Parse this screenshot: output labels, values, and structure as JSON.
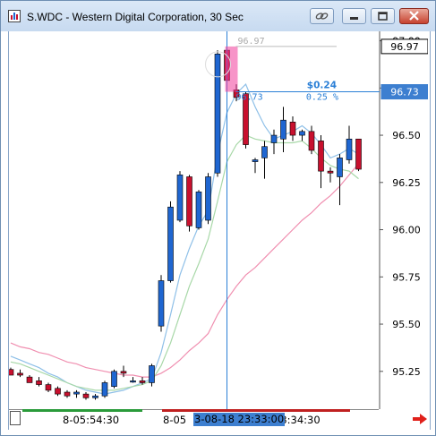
{
  "window": {
    "title": "S.WDC - Western Digital Corporation, 30 Sec",
    "buttons": [
      "link",
      "minimize",
      "restore",
      "close"
    ]
  },
  "colors": {
    "up_candle": "#1f66d1",
    "down_candle": "#c8102e",
    "ma_fast": "#8fc0e8",
    "ma_mid": "#a8d8a8",
    "ma_slow": "#f08fb0",
    "crosshair": "#2a7fd6",
    "axis_label_bg": "#3d7fd0",
    "highlight_box": "#f03c9a"
  },
  "price_axis": {
    "labels": [
      "97.00",
      "96.75",
      "96.50",
      "96.25",
      "96.00",
      "95.75",
      "95.50",
      "95.25"
    ],
    "current_price_tag": "96.97",
    "crosshair_price_tag": "96.73"
  },
  "time_axis": {
    "labels": [
      "8-05:54:30",
      "8-05",
      "23:34:30"
    ],
    "crosshair_time": "3-08-18 23:33:00"
  },
  "annotations": {
    "measure_price_top": "96.97",
    "measure_price_bottom": "96.73",
    "measure_change": "$0.24",
    "measure_percent": "0.25 %"
  },
  "chart_data": {
    "type": "candlestick",
    "ylim": [
      95.05,
      97.05
    ],
    "candles": [
      {
        "o": 95.26,
        "h": 95.27,
        "l": 95.23,
        "c": 95.23
      },
      {
        "o": 95.24,
        "h": 95.26,
        "l": 95.22,
        "c": 95.23
      },
      {
        "o": 95.22,
        "h": 95.23,
        "l": 95.19,
        "c": 95.19
      },
      {
        "o": 95.2,
        "h": 95.22,
        "l": 95.17,
        "c": 95.18
      },
      {
        "o": 95.18,
        "h": 95.19,
        "l": 95.14,
        "c": 95.15
      },
      {
        "o": 95.16,
        "h": 95.17,
        "l": 95.12,
        "c": 95.13
      },
      {
        "o": 95.14,
        "h": 95.15,
        "l": 95.11,
        "c": 95.12
      },
      {
        "o": 95.13,
        "h": 95.15,
        "l": 95.11,
        "c": 95.14
      },
      {
        "o": 95.13,
        "h": 95.14,
        "l": 95.1,
        "c": 95.11
      },
      {
        "o": 95.11,
        "h": 95.13,
        "l": 95.1,
        "c": 95.12
      },
      {
        "o": 95.12,
        "h": 95.2,
        "l": 95.11,
        "c": 95.19
      },
      {
        "o": 95.17,
        "h": 95.26,
        "l": 95.16,
        "c": 95.25
      },
      {
        "o": 95.25,
        "h": 95.28,
        "l": 95.22,
        "c": 95.24
      },
      {
        "o": 95.2,
        "h": 95.22,
        "l": 95.19,
        "c": 95.2
      },
      {
        "o": 95.2,
        "h": 95.22,
        "l": 95.18,
        "c": 95.19
      },
      {
        "o": 95.19,
        "h": 95.29,
        "l": 95.17,
        "c": 95.28
      },
      {
        "o": 95.49,
        "h": 95.76,
        "l": 95.46,
        "c": 95.73
      },
      {
        "o": 95.73,
        "h": 96.15,
        "l": 95.72,
        "c": 96.12
      },
      {
        "o": 96.05,
        "h": 96.31,
        "l": 96.04,
        "c": 96.29
      },
      {
        "o": 96.28,
        "h": 96.29,
        "l": 95.99,
        "c": 96.02
      },
      {
        "o": 96.01,
        "h": 96.21,
        "l": 96.0,
        "c": 96.2
      },
      {
        "o": 96.05,
        "h": 96.3,
        "l": 96.03,
        "c": 96.28
      },
      {
        "o": 96.3,
        "h": 96.95,
        "l": 96.28,
        "c": 96.93
      },
      {
        "o": 96.95,
        "h": 97.12,
        "l": 96.74,
        "c": 96.79
      },
      {
        "o": 96.74,
        "h": 96.77,
        "l": 96.68,
        "c": 96.7
      },
      {
        "o": 96.72,
        "h": 96.73,
        "l": 96.43,
        "c": 96.45
      },
      {
        "o": 96.36,
        "h": 96.38,
        "l": 96.3,
        "c": 96.37
      },
      {
        "o": 96.38,
        "h": 96.47,
        "l": 96.27,
        "c": 96.44
      },
      {
        "o": 96.46,
        "h": 96.53,
        "l": 96.4,
        "c": 96.5
      },
      {
        "o": 96.48,
        "h": 96.65,
        "l": 96.41,
        "c": 96.58
      },
      {
        "o": 96.57,
        "h": 96.6,
        "l": 96.47,
        "c": 96.5
      },
      {
        "o": 96.5,
        "h": 96.53,
        "l": 96.47,
        "c": 96.52
      },
      {
        "o": 96.52,
        "h": 96.55,
        "l": 96.4,
        "c": 96.42
      },
      {
        "o": 96.47,
        "h": 96.5,
        "l": 96.22,
        "c": 96.31
      },
      {
        "o": 96.31,
        "h": 96.33,
        "l": 96.25,
        "c": 96.3
      },
      {
        "o": 96.28,
        "h": 96.4,
        "l": 96.13,
        "c": 96.38
      },
      {
        "o": 96.37,
        "h": 96.55,
        "l": 96.35,
        "c": 96.48
      },
      {
        "o": 96.48,
        "h": 96.48,
        "l": 96.31,
        "c": 96.32
      }
    ],
    "ma_fast": [
      95.33,
      95.31,
      95.29,
      95.27,
      95.24,
      95.22,
      95.19,
      95.17,
      95.15,
      95.14,
      95.13,
      95.14,
      95.15,
      95.17,
      95.19,
      95.21,
      95.35,
      95.55,
      95.76,
      95.9,
      96.02,
      96.1,
      96.4,
      96.62,
      96.72,
      96.77,
      96.65,
      96.55,
      96.48,
      96.5,
      96.52,
      96.55,
      96.51,
      96.45,
      96.38,
      96.4,
      96.43,
      96.4
    ],
    "ma_mid": [
      95.3,
      95.29,
      95.27,
      95.25,
      95.23,
      95.21,
      95.19,
      95.17,
      95.16,
      95.15,
      95.15,
      95.15,
      95.16,
      95.17,
      95.18,
      95.2,
      95.28,
      95.4,
      95.55,
      95.7,
      95.82,
      95.95,
      96.15,
      96.36,
      96.45,
      96.5,
      96.48,
      96.47,
      96.46,
      96.46,
      96.46,
      96.47,
      96.43,
      96.38,
      96.34,
      96.32,
      96.31,
      96.27
    ],
    "ma_slow": [
      95.4,
      95.38,
      95.37,
      95.35,
      95.34,
      95.32,
      95.3,
      95.29,
      95.27,
      95.26,
      95.25,
      95.24,
      95.23,
      95.23,
      95.22,
      95.22,
      95.24,
      95.27,
      95.31,
      95.36,
      95.4,
      95.45,
      95.55,
      95.63,
      95.7,
      95.76,
      95.8,
      95.85,
      95.9,
      95.95,
      96.0,
      96.05,
      96.09,
      96.14,
      96.18,
      96.23,
      96.29,
      96.35
    ]
  }
}
